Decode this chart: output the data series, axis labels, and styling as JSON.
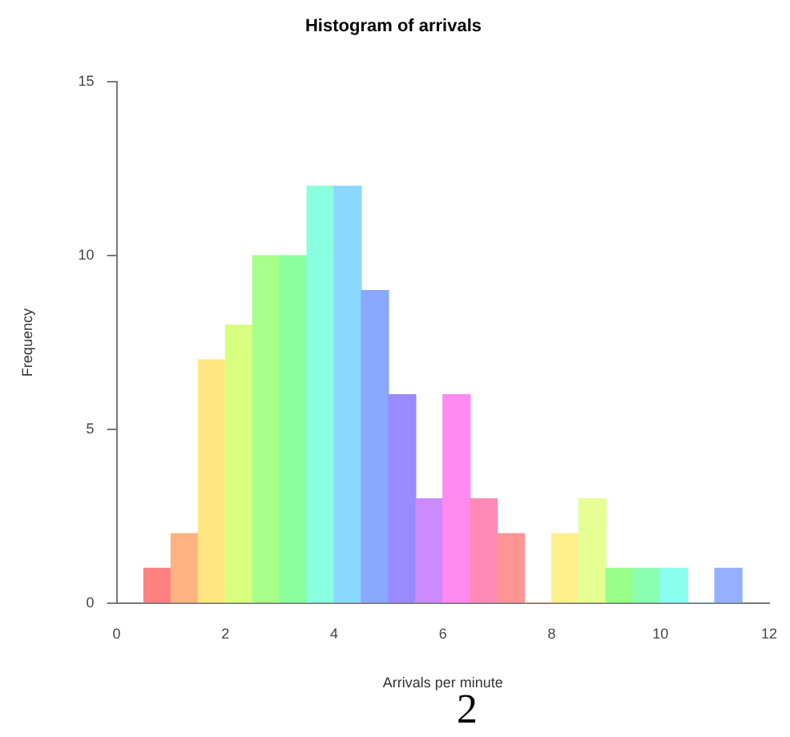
{
  "chart_data": {
    "type": "histogram",
    "title": "Histogram of arrivals",
    "xlabel": "Arrivals per minute",
    "ylabel": "Frequency",
    "bins": [
      0.5,
      1,
      1.5,
      2,
      2.5,
      3,
      3.5,
      4,
      4.5,
      5,
      5.5,
      6,
      6.5,
      7,
      7.5,
      8,
      8.5,
      9,
      9.5,
      10,
      10.5,
      11,
      11.5
    ],
    "values": [
      1,
      2,
      7,
      8,
      10,
      10,
      12,
      12,
      9,
      6,
      3,
      6,
      3,
      2,
      0,
      2,
      3,
      1,
      1,
      1,
      0,
      1
    ],
    "colors": [
      "#ff8080",
      "#ffb380",
      "#ffe680",
      "#d9ff80",
      "#a8ff8a",
      "#8aff9e",
      "#8affe0",
      "#8ad8ff",
      "#8aa8ff",
      "#9a8aff",
      "#cc8aff",
      "#ff8af0",
      "#ff8ab8",
      "#ff9494",
      "#ffa070",
      "#fff08c",
      "#e6ff94",
      "#98ff8a",
      "#8affb0",
      "#8afff0",
      "#60c0e0",
      "#94b0ff"
    ],
    "xlim": [
      0,
      12
    ],
    "xticks": [
      0,
      2,
      4,
      6,
      8,
      10,
      12
    ],
    "ylim": [
      0,
      15
    ],
    "yticks": [
      0,
      5,
      10,
      15
    ],
    "grid": false,
    "legend": false,
    "annotations": [
      "2"
    ]
  }
}
